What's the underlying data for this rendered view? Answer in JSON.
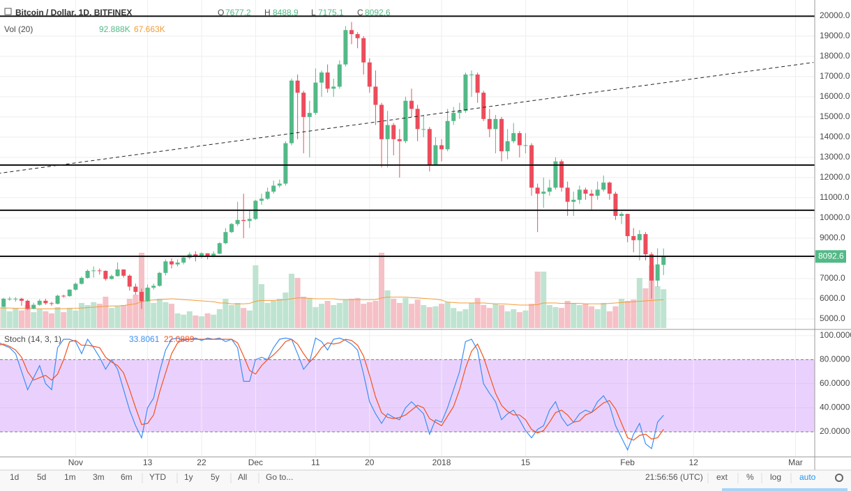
{
  "header": {
    "title": "Bitcoin / Dollar, 1D, BITFINEX",
    "ohlc_names": [
      "O",
      "H",
      "L",
      "C"
    ]
  },
  "chart_data": [
    {
      "type": "candlestick",
      "open": [
        5650,
        5600,
        6000,
        6000,
        6000,
        5900,
        5500,
        5700,
        5900,
        5780,
        5750,
        6150,
        6130,
        6450,
        6740,
        7030,
        7380,
        7400,
        7380,
        6980,
        7120,
        7450,
        7140,
        6600,
        6340,
        5880,
        6550,
        6640,
        7280,
        7850,
        7700,
        7790,
        8040,
        8200,
        8070,
        8250,
        8100,
        8230,
        8750,
        9300,
        9700,
        9900,
        9850,
        9950,
        10850,
        10950,
        11300,
        11600,
        11700,
        13700,
        16800,
        16200,
        15000,
        15200,
        16700,
        17200,
        16400,
        16500,
        17600,
        19300,
        19100,
        18900,
        17700,
        16500,
        15600,
        13900,
        14600,
        13900,
        13800,
        15800,
        15400,
        14400,
        14400,
        12600,
        13600,
        13400,
        14800,
        15200,
        15300,
        17100,
        17100,
        16200,
        14900,
        14400,
        14900,
        13300,
        13800,
        14200,
        13600,
        13600,
        11500,
        11200,
        11300,
        11500,
        12800,
        11500,
        10800,
        10900,
        11400,
        11200,
        11100,
        11400,
        11750,
        11200,
        10100,
        10200,
        9100,
        8900,
        9200,
        8200,
        6900,
        7677.2
      ],
      "high": [
        5750,
        6050,
        6100,
        6080,
        6050,
        5950,
        5800,
        5980,
        6000,
        5850,
        6200,
        6200,
        6470,
        6800,
        7100,
        7450,
        7600,
        7500,
        7400,
        7200,
        7800,
        7450,
        7200,
        6750,
        6500,
        6700,
        6750,
        7330,
        7950,
        8000,
        7950,
        8100,
        8300,
        8350,
        8300,
        8250,
        8350,
        8800,
        9500,
        9750,
        10800,
        11200,
        10400,
        10900,
        11200,
        11500,
        11850,
        11900,
        13800,
        16900,
        17100,
        16300,
        15800,
        17400,
        17300,
        17600,
        16900,
        17800,
        19500,
        19700,
        19200,
        19000,
        17900,
        17300,
        15700,
        15300,
        14700,
        14400,
        16000,
        16400,
        15600,
        15100,
        14500,
        14000,
        13900,
        15400,
        15500,
        15700,
        17200,
        17300,
        17200,
        16300,
        15400,
        15100,
        15000,
        14400,
        14700,
        14300,
        14200,
        13700,
        11700,
        12000,
        11900,
        13000,
        12900,
        11800,
        11300,
        11600,
        11500,
        11400,
        11800,
        12100,
        11800,
        11300,
        10300,
        10200,
        9500,
        9400,
        9300,
        8300,
        8500,
        8488.9
      ],
      "low": [
        5500,
        5580,
        5900,
        5850,
        5650,
        5450,
        5480,
        5650,
        5700,
        5650,
        5720,
        6050,
        6100,
        6400,
        6700,
        7000,
        7050,
        7200,
        6900,
        6950,
        7100,
        7050,
        6400,
        6200,
        5500,
        5850,
        6450,
        6600,
        7150,
        7500,
        7600,
        7700,
        7950,
        7850,
        8000,
        7950,
        8050,
        8200,
        8700,
        9250,
        9600,
        9000,
        9500,
        9900,
        10650,
        10900,
        11200,
        11500,
        11600,
        13600,
        13900,
        13200,
        13000,
        15100,
        16000,
        16200,
        16000,
        16400,
        17500,
        18600,
        18400,
        17100,
        16200,
        14600,
        12500,
        12500,
        13100,
        12000,
        13700,
        15000,
        13800,
        14000,
        12300,
        12600,
        12800,
        13300,
        14600,
        14900,
        15200,
        16000,
        15700,
        14800,
        14000,
        13200,
        12800,
        12900,
        13700,
        13000,
        13200,
        11100,
        9300,
        10500,
        11100,
        11400,
        11300,
        10100,
        10100,
        10700,
        10900,
        10400,
        10900,
        11300,
        10900,
        9900,
        9700,
        8800,
        8300,
        7900,
        7900,
        6000,
        6600,
        7175.1
      ],
      "close": [
        5600,
        6000,
        6000,
        6000,
        5900,
        5500,
        5700,
        5900,
        5780,
        5750,
        6150,
        6130,
        6450,
        6740,
        7030,
        7380,
        7400,
        7380,
        6980,
        7120,
        7450,
        7140,
        6600,
        6340,
        5880,
        6550,
        6640,
        7280,
        7850,
        7700,
        7790,
        8040,
        8200,
        8070,
        8250,
        8100,
        8230,
        8750,
        9300,
        9700,
        9900,
        9850,
        9950,
        10850,
        10950,
        11300,
        11600,
        11700,
        13700,
        16800,
        16200,
        15000,
        15200,
        16700,
        17200,
        16400,
        16500,
        17600,
        19300,
        19100,
        18900,
        17700,
        16500,
        15600,
        13900,
        14600,
        13900,
        13800,
        15800,
        15400,
        14400,
        14400,
        12600,
        13600,
        13400,
        14800,
        15200,
        15300,
        17100,
        17100,
        16200,
        14900,
        14400,
        14900,
        13300,
        13800,
        14200,
        13600,
        13600,
        11500,
        11200,
        11300,
        11500,
        12800,
        11500,
        10800,
        10900,
        11400,
        11200,
        11100,
        11400,
        11750,
        11200,
        10100,
        10200,
        9100,
        8900,
        9200,
        8200,
        6900,
        7700,
        8092.6
      ],
      "up_color": "#53b987",
      "down_color": "#eb4d5c",
      "xlim": [
        0.4,
        136.2
      ],
      "ylim": [
        4550,
        20790
      ],
      "yticks": [
        {
          "value": 5000,
          "label": "5000.0"
        },
        {
          "value": 6000,
          "label": "6000.0"
        },
        {
          "value": 7000,
          "label": "7000.0"
        },
        {
          "value": 8000,
          "label": "8000.0"
        },
        {
          "value": 9000,
          "label": "9000.0"
        },
        {
          "value": 10000,
          "label": "10000.0"
        },
        {
          "value": 11000,
          "label": "11000.0"
        },
        {
          "value": 12000,
          "label": "12000.0"
        },
        {
          "value": 13000,
          "label": "13000.0"
        },
        {
          "value": 14000,
          "label": "14000.0"
        },
        {
          "value": 15000,
          "label": "15000.0"
        },
        {
          "value": 16000,
          "label": "16000.0"
        },
        {
          "value": 17000,
          "label": "17000.0"
        },
        {
          "value": 18000,
          "label": "18000.0"
        },
        {
          "value": 19000,
          "label": "19000.0"
        },
        {
          "value": 20000,
          "label": "20000.0"
        }
      ],
      "xticks": [
        {
          "value": 13,
          "label": "Nov"
        },
        {
          "value": 25,
          "label": "13"
        },
        {
          "value": 34,
          "label": "22"
        },
        {
          "value": 43,
          "label": "Dec"
        },
        {
          "value": 53,
          "label": "11"
        },
        {
          "value": 62,
          "label": "20"
        },
        {
          "value": 74,
          "label": "2018"
        },
        {
          "value": 88,
          "label": "15"
        },
        {
          "value": 105,
          "label": "Feb"
        },
        {
          "value": 116,
          "label": "12"
        },
        {
          "value": 133,
          "label": "Mar"
        }
      ],
      "hlines": [
        19990,
        12620,
        10380,
        8100
      ],
      "trend_line": {
        "x": [
          0,
          136
        ],
        "y": [
          12200,
          17700
        ]
      },
      "grid": true
    },
    {
      "type": "volume",
      "name": "Vol (20)",
      "values": [
        45,
        50,
        40,
        48,
        42,
        55,
        38,
        45,
        40,
        35,
        50,
        38,
        48,
        42,
        60,
        55,
        62,
        58,
        75,
        48,
        52,
        55,
        70,
        80,
        180,
        95,
        60,
        70,
        62,
        58,
        35,
        32,
        40,
        30,
        28,
        35,
        32,
        45,
        70,
        55,
        60,
        48,
        42,
        150,
        105,
        60,
        65,
        70,
        85,
        130,
        120,
        75,
        72,
        50,
        58,
        65,
        55,
        60,
        68,
        70,
        72,
        58,
        62,
        65,
        180,
        90,
        70,
        60,
        72,
        58,
        68,
        55,
        50,
        52,
        58,
        62,
        48,
        40,
        45,
        60,
        72,
        55,
        48,
        58,
        55,
        40,
        45,
        38,
        42,
        58,
        135,
        135,
        55,
        50,
        48,
        65,
        60,
        55,
        58,
        52,
        45,
        60,
        40,
        52,
        70,
        65,
        68,
        120,
        95,
        150,
        100,
        92.888
      ],
      "ma": [
        48,
        48,
        48,
        47,
        47,
        47,
        47,
        46,
        46,
        46,
        46,
        46,
        47,
        47,
        48,
        49,
        50,
        51,
        52,
        53,
        53,
        54,
        56,
        58,
        63,
        66,
        67,
        68,
        69,
        70,
        69,
        68,
        67,
        66,
        65,
        64,
        63,
        60,
        60,
        58,
        58,
        58,
        59,
        64,
        66,
        66,
        66,
        67,
        68,
        70,
        72,
        72,
        71,
        70,
        70,
        70,
        70,
        68,
        68,
        68,
        68,
        68,
        68,
        68,
        72,
        74,
        74,
        74,
        74,
        73,
        72,
        71,
        70,
        69,
        67,
        62,
        61,
        60,
        60,
        60,
        60,
        60,
        59,
        58,
        58,
        57,
        56,
        55,
        55,
        55,
        56,
        60,
        60,
        60,
        59,
        59,
        59,
        59,
        58,
        58,
        58,
        58,
        59,
        60,
        61,
        62,
        63,
        64,
        65,
        66,
        67,
        67.663
      ],
      "value_label": "92.888K",
      "ma_label": "67.663K",
      "ylim": [
        0,
        785
      ],
      "up_color": "#bfe3d1",
      "down_color": "#f5c0c6",
      "ma_color": "#f39c35"
    },
    {
      "type": "stoch",
      "name": "Stoch (14, 3, 1)",
      "series": [
        {
          "color": "#3c8ef3",
          "values": [
            95,
            92,
            90,
            85,
            70,
            55,
            65,
            75,
            60,
            55,
            90,
            97,
            97,
            95,
            85,
            97,
            90,
            82,
            72,
            80,
            72,
            55,
            38,
            25,
            15,
            40,
            48,
            70,
            88,
            97,
            98,
            96,
            97,
            98,
            96,
            98,
            97,
            98,
            95,
            97,
            90,
            62,
            62,
            80,
            82,
            80,
            90,
            97,
            98,
            97,
            85,
            72,
            78,
            98,
            95,
            88,
            97,
            98,
            96,
            93,
            88,
            68,
            45,
            35,
            27,
            35,
            32,
            30,
            40,
            45,
            40,
            35,
            18,
            30,
            28,
            40,
            55,
            70,
            95,
            97,
            88,
            60,
            52,
            45,
            30,
            35,
            38,
            30,
            21,
            15,
            22,
            25,
            38,
            45,
            32,
            25,
            28,
            35,
            38,
            36,
            45,
            50,
            42,
            25,
            15,
            5,
            18,
            27,
            10,
            6,
            28,
            33.8061
          ]
        },
        {
          "color": "#f4511e",
          "values": [
            92,
            93,
            91,
            88,
            82,
            70,
            63,
            65,
            67,
            63,
            68,
            80,
            95,
            96,
            92,
            92,
            91,
            90,
            82,
            78,
            75,
            69,
            55,
            40,
            26,
            27,
            34,
            53,
            69,
            85,
            94,
            97,
            97,
            97,
            97,
            97,
            97,
            97,
            97,
            97,
            94,
            83,
            71,
            68,
            75,
            80,
            84,
            89,
            95,
            97,
            93,
            85,
            78,
            83,
            90,
            94,
            93,
            94,
            97,
            96,
            92,
            83,
            67,
            49,
            36,
            32,
            31,
            32,
            34,
            38,
            42,
            40,
            31,
            28,
            25,
            33,
            41,
            55,
            73,
            87,
            93,
            82,
            67,
            52,
            42,
            37,
            34,
            34,
            30,
            22,
            19,
            21,
            28,
            36,
            38,
            34,
            28,
            29,
            34,
            36,
            40,
            44,
            46,
            39,
            27,
            15,
            13,
            17,
            18,
            14,
            15,
            22.0889
          ]
        }
      ],
      "ylim": [
        -0.3,
        104
      ],
      "yticks": [
        {
          "value": 20,
          "label": "20.0000"
        },
        {
          "value": 40,
          "label": "40.0000"
        },
        {
          "value": 60,
          "label": "60.0000"
        },
        {
          "value": 80,
          "label": "80.0000"
        },
        {
          "value": 100,
          "label": "100.0000"
        }
      ],
      "band": [
        20,
        80
      ],
      "band_color": "#ead1fd"
    }
  ],
  "toolbar": {
    "left": [
      "1d",
      "5d",
      "1m",
      "3m",
      "6m",
      "YTD",
      "1y",
      "5y",
      "All",
      "Go to..."
    ],
    "time": "21:56:56 (UTC)",
    "right": [
      "ext",
      "%",
      "log",
      "auto"
    ]
  }
}
